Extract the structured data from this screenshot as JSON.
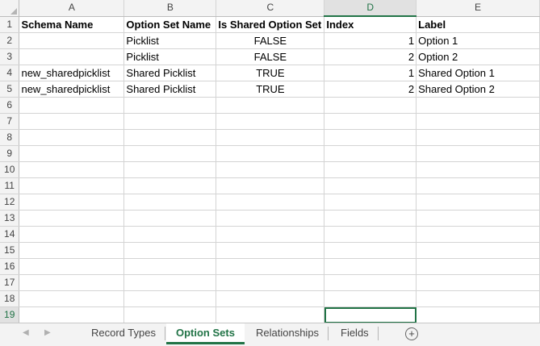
{
  "columns": [
    "A",
    "B",
    "C",
    "D",
    "E"
  ],
  "active_column": "D",
  "rows": [
    {
      "num": "1",
      "cells": [
        "Schema Name",
        "Option Set Name",
        "Is Shared Option Set",
        "Index",
        "Label"
      ]
    },
    {
      "num": "2",
      "cells": [
        "",
        "Picklist",
        "FALSE",
        "1",
        "Option 1"
      ]
    },
    {
      "num": "3",
      "cells": [
        "",
        "Picklist",
        "FALSE",
        "2",
        "Option 2"
      ]
    },
    {
      "num": "4",
      "cells": [
        "new_sharedpicklist",
        "Shared Picklist",
        "TRUE",
        "1",
        "Shared Option 1"
      ]
    },
    {
      "num": "5",
      "cells": [
        "new_sharedpicklist",
        "Shared Picklist",
        "TRUE",
        "2",
        "Shared Option 2"
      ]
    },
    {
      "num": "6",
      "cells": [
        "",
        "",
        "",
        "",
        ""
      ]
    },
    {
      "num": "7",
      "cells": [
        "",
        "",
        "",
        "",
        ""
      ]
    },
    {
      "num": "8",
      "cells": [
        "",
        "",
        "",
        "",
        ""
      ]
    },
    {
      "num": "9",
      "cells": [
        "",
        "",
        "",
        "",
        ""
      ]
    },
    {
      "num": "10",
      "cells": [
        "",
        "",
        "",
        "",
        ""
      ]
    },
    {
      "num": "11",
      "cells": [
        "",
        "",
        "",
        "",
        ""
      ]
    },
    {
      "num": "12",
      "cells": [
        "",
        "",
        "",
        "",
        ""
      ]
    },
    {
      "num": "13",
      "cells": [
        "",
        "",
        "",
        "",
        ""
      ]
    },
    {
      "num": "14",
      "cells": [
        "",
        "",
        "",
        "",
        ""
      ]
    },
    {
      "num": "15",
      "cells": [
        "",
        "",
        "",
        "",
        ""
      ]
    },
    {
      "num": "16",
      "cells": [
        "",
        "",
        "",
        "",
        ""
      ]
    },
    {
      "num": "17",
      "cells": [
        "",
        "",
        "",
        "",
        ""
      ]
    },
    {
      "num": "18",
      "cells": [
        "",
        "",
        "",
        "",
        ""
      ]
    },
    {
      "num": "19",
      "cells": [
        "",
        "",
        "",
        "",
        ""
      ]
    }
  ],
  "selected_cell": "D19",
  "sheet_tabs": [
    {
      "label": "Record Types",
      "active": false
    },
    {
      "label": "Option Sets",
      "active": true
    },
    {
      "label": "Relationships",
      "active": false
    },
    {
      "label": "Fields",
      "active": false
    }
  ],
  "nav": {
    "prev_icon": "triangle-left-icon",
    "next_icon": "triangle-right-icon",
    "add_icon": "plus-circle-icon",
    "more_icon": "ellipsis-icon"
  },
  "colors": {
    "accent": "#217346",
    "header_bg": "#f3f3f3",
    "gridline": "#d4d4d4"
  }
}
